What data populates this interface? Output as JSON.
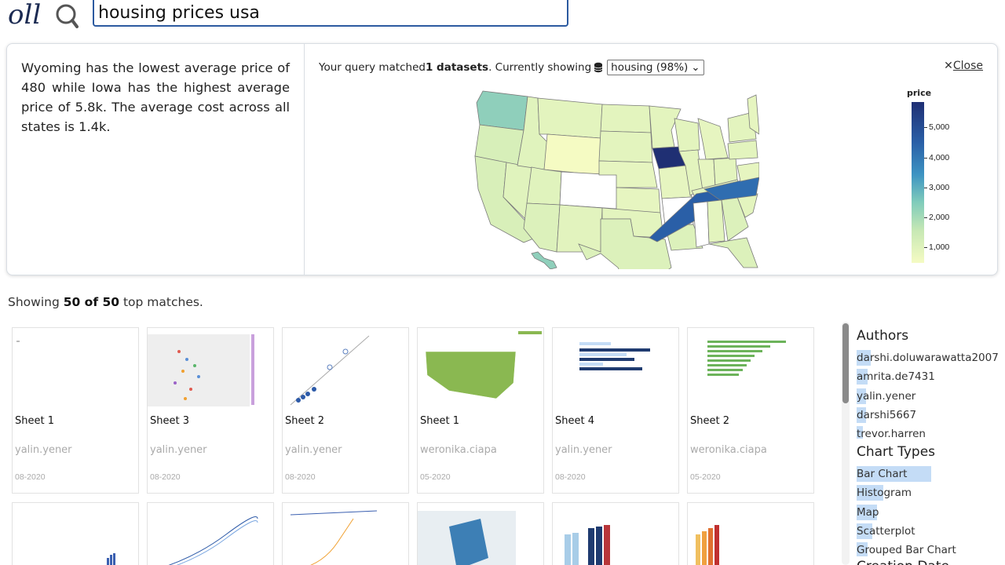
{
  "header": {
    "search_value": "housing prices usa"
  },
  "summary": {
    "insight_text": "Wyoming has the lowest average price of 480 while Iowa has the highest average price of 5.8k. The average cost across all states is 1.4k.",
    "query_prefix": "Your query matched ",
    "query_count": "1 datasets",
    "query_suffix": ". Currently showing",
    "dataset_option": "housing (98%)",
    "close_label": "Close",
    "legend": {
      "title": "price",
      "ticks": [
        "5,000",
        "4,000",
        "3,000",
        "2,000",
        "1,000"
      ]
    },
    "colors": {
      "low": "#f5fbc3",
      "mid": "#7ecbbb",
      "high": "#1f2f73"
    }
  },
  "results": {
    "prefix": "Showing ",
    "count": "50 of 50",
    "suffix": " top matches.",
    "cards": [
      {
        "title": "Sheet 1",
        "author": "yalin.yener",
        "date": "08-2020"
      },
      {
        "title": "Sheet 3",
        "author": "yalin.yener",
        "date": "08-2020"
      },
      {
        "title": "Sheet 2",
        "author": "yalin.yener",
        "date": "08-2020"
      },
      {
        "title": "Sheet 1",
        "author": "weronika.ciapa",
        "date": "05-2020"
      },
      {
        "title": "Sheet 4",
        "author": "yalin.yener",
        "date": "08-2020"
      },
      {
        "title": "Sheet 2",
        "author": "weronika.ciapa",
        "date": "05-2020"
      }
    ]
  },
  "facets": {
    "authors_title": "Authors",
    "authors": [
      "darshi.doluwarawatta2007",
      "amrita.de7431",
      "yalin.yener",
      "darshi5667",
      "trevor.harren"
    ],
    "chart_types_title": "Chart Types",
    "chart_types": [
      "Bar Chart",
      "Histogram",
      "Map",
      "Scatterplot",
      "Grouped Bar Chart"
    ],
    "creation_date_title": "Creation Date"
  }
}
